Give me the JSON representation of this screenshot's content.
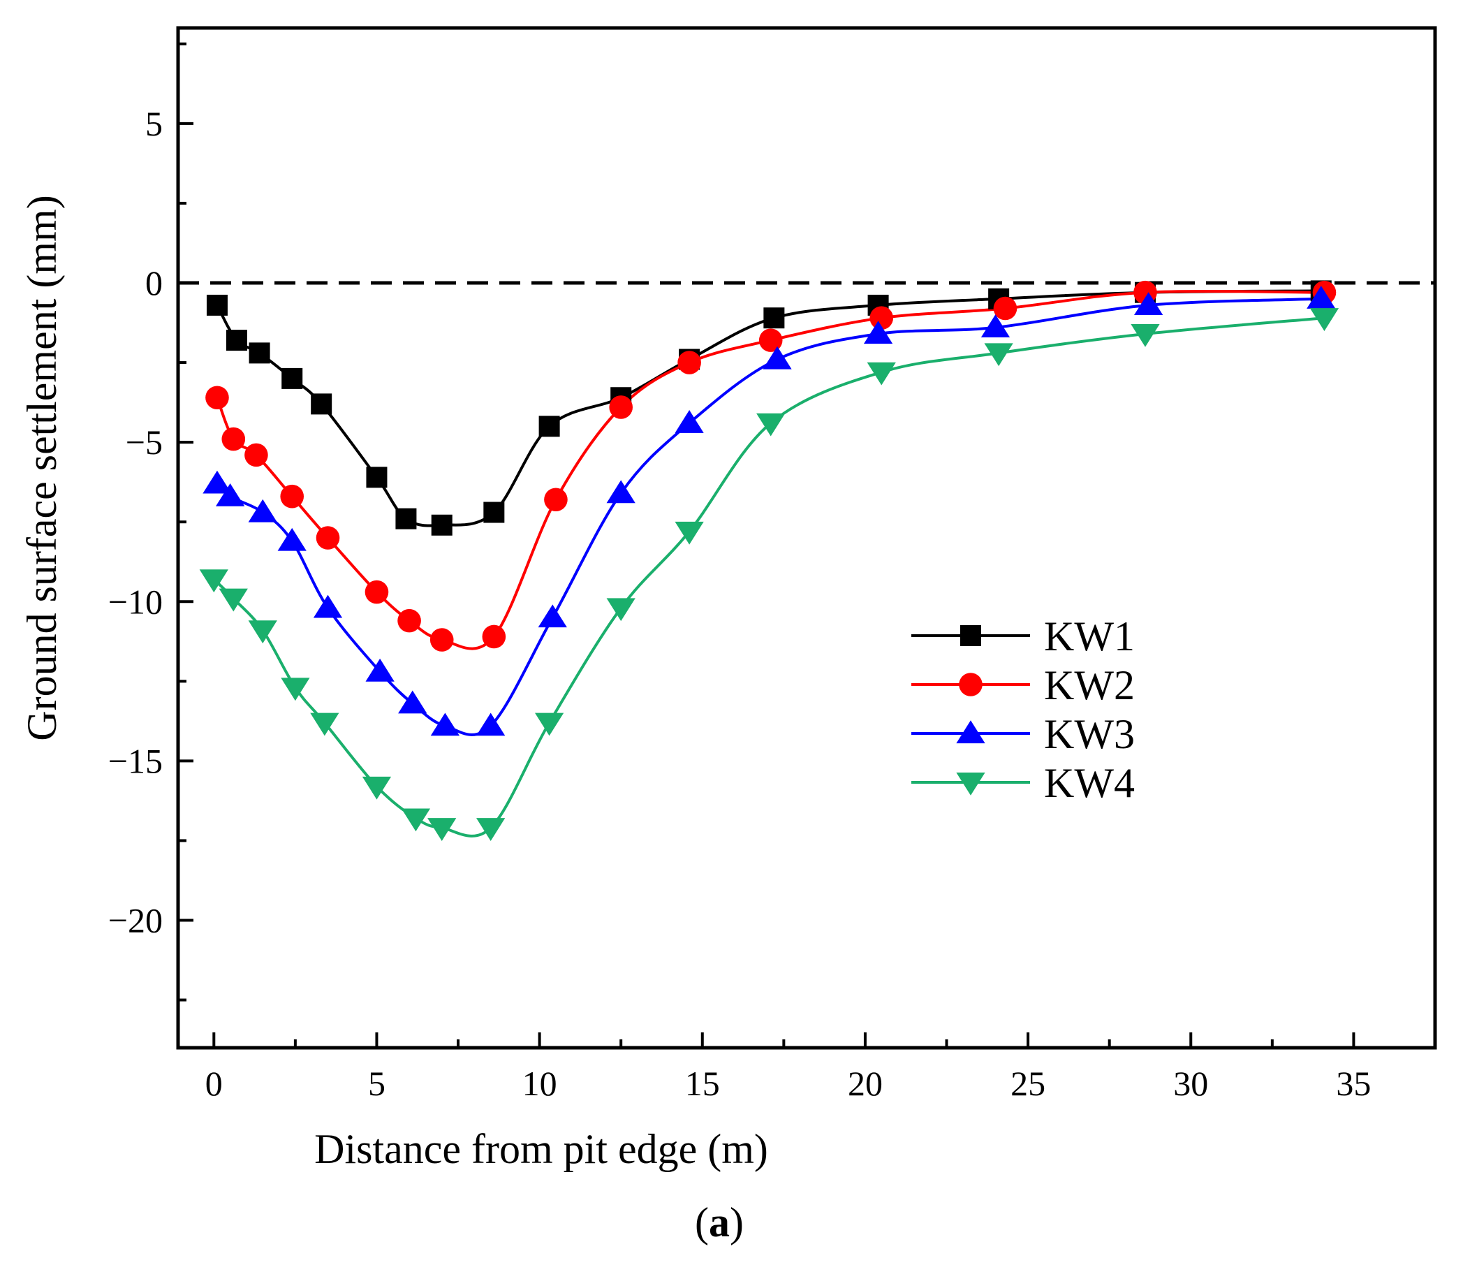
{
  "chart_data": {
    "type": "line",
    "title": "",
    "xlabel": "Distance from pit edge (m)",
    "ylabel": "Ground surface settlement (mm)",
    "panel_label_open": "(",
    "panel_label_letter": "a",
    "panel_label_close": ")",
    "xlim": [
      -1.1,
      37.5
    ],
    "ylim": [
      -24,
      8
    ],
    "xticks": [
      0,
      5,
      10,
      15,
      20,
      25,
      30,
      35
    ],
    "yticks": [
      5,
      0,
      -5,
      -10,
      -15,
      -20
    ],
    "xtick_labels": [
      "0",
      "5",
      "10",
      "15",
      "20",
      "25",
      "30",
      "35"
    ],
    "ytick_labels": [
      "5",
      "0",
      "−10",
      "−15",
      "−20"
    ],
    "ytick_labels_all": [
      "5",
      "0",
      "−5",
      "−10",
      "−15",
      "−20"
    ],
    "reference_line": {
      "y": 0,
      "style": "dashed"
    },
    "legend_position": "right-center",
    "series": [
      {
        "name": "KW1",
        "color": "#000000",
        "marker": "square",
        "x": [
          0.1,
          0.7,
          1.4,
          2.4,
          3.3,
          5.0,
          5.9,
          7.0,
          8.6,
          10.3,
          12.5,
          14.6,
          17.2,
          20.4,
          24.1,
          28.6,
          34.0
        ],
        "y": [
          -0.7,
          -1.8,
          -2.2,
          -3.0,
          -3.8,
          -6.1,
          -7.4,
          -7.6,
          -7.2,
          -4.5,
          -3.6,
          -2.4,
          -1.1,
          -0.7,
          -0.5,
          -0.3,
          -0.25
        ]
      },
      {
        "name": "KW2",
        "color": "#ff0000",
        "marker": "circle",
        "x": [
          0.1,
          0.6,
          1.3,
          2.4,
          3.5,
          5.0,
          6.0,
          7.0,
          8.6,
          10.5,
          12.5,
          14.6,
          17.1,
          20.5,
          24.3,
          28.6,
          34.1
        ],
        "y": [
          -3.6,
          -4.9,
          -5.4,
          -6.7,
          -8.0,
          -9.7,
          -10.6,
          -11.2,
          -11.1,
          -6.8,
          -3.9,
          -2.5,
          -1.8,
          -1.1,
          -0.8,
          -0.3,
          -0.3
        ]
      },
      {
        "name": "KW3",
        "color": "#0000ff",
        "marker": "triangle-up",
        "x": [
          0.1,
          0.5,
          1.5,
          2.4,
          3.5,
          5.1,
          6.1,
          7.1,
          8.5,
          10.4,
          12.5,
          14.6,
          17.3,
          20.4,
          24.0,
          28.7,
          34.0
        ],
        "y": [
          -6.3,
          -6.7,
          -7.2,
          -8.1,
          -10.2,
          -12.2,
          -13.2,
          -13.9,
          -13.9,
          -10.5,
          -6.6,
          -4.4,
          -2.4,
          -1.6,
          -1.4,
          -0.7,
          -0.5
        ]
      },
      {
        "name": "KW4",
        "color": "#1aaf6c",
        "marker": "triangle-down",
        "x": [
          0.0,
          0.6,
          1.5,
          2.5,
          3.4,
          5.0,
          6.2,
          7.0,
          8.5,
          10.3,
          12.5,
          14.6,
          17.1,
          20.5,
          24.1,
          28.6,
          34.1
        ],
        "y": [
          -9.3,
          -9.9,
          -10.9,
          -12.7,
          -13.8,
          -15.8,
          -16.8,
          -17.1,
          -17.1,
          -13.8,
          -10.2,
          -7.8,
          -4.4,
          -2.8,
          -2.2,
          -1.6,
          -1.1
        ]
      }
    ]
  }
}
